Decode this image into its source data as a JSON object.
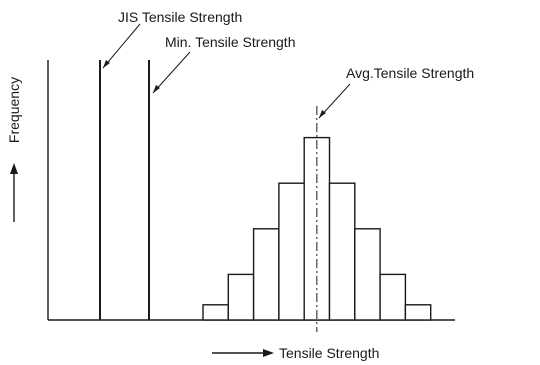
{
  "chart_data": {
    "type": "bar",
    "title": "",
    "xlabel": "Tensile Strength",
    "ylabel": "Frequency",
    "grid": false,
    "legend": "none",
    "x_ticks": "none",
    "y_ticks": "none",
    "bins": [
      1,
      2,
      3,
      4,
      5,
      6,
      7,
      8,
      9
    ],
    "values": [
      1,
      3,
      6,
      9,
      12,
      9,
      6,
      3,
      1
    ],
    "x_range": [
      0,
      11
    ],
    "y_range": [
      0,
      19
    ],
    "reference_lines": [
      {
        "label": "JIS Tensile Strength",
        "x": -6.0
      },
      {
        "label": "Min. Tensile Strength",
        "x": -4.0
      }
    ],
    "average_line": {
      "label": "Avg.Tensile Strength",
      "x": 5.0,
      "style": "dash-dot"
    }
  }
}
